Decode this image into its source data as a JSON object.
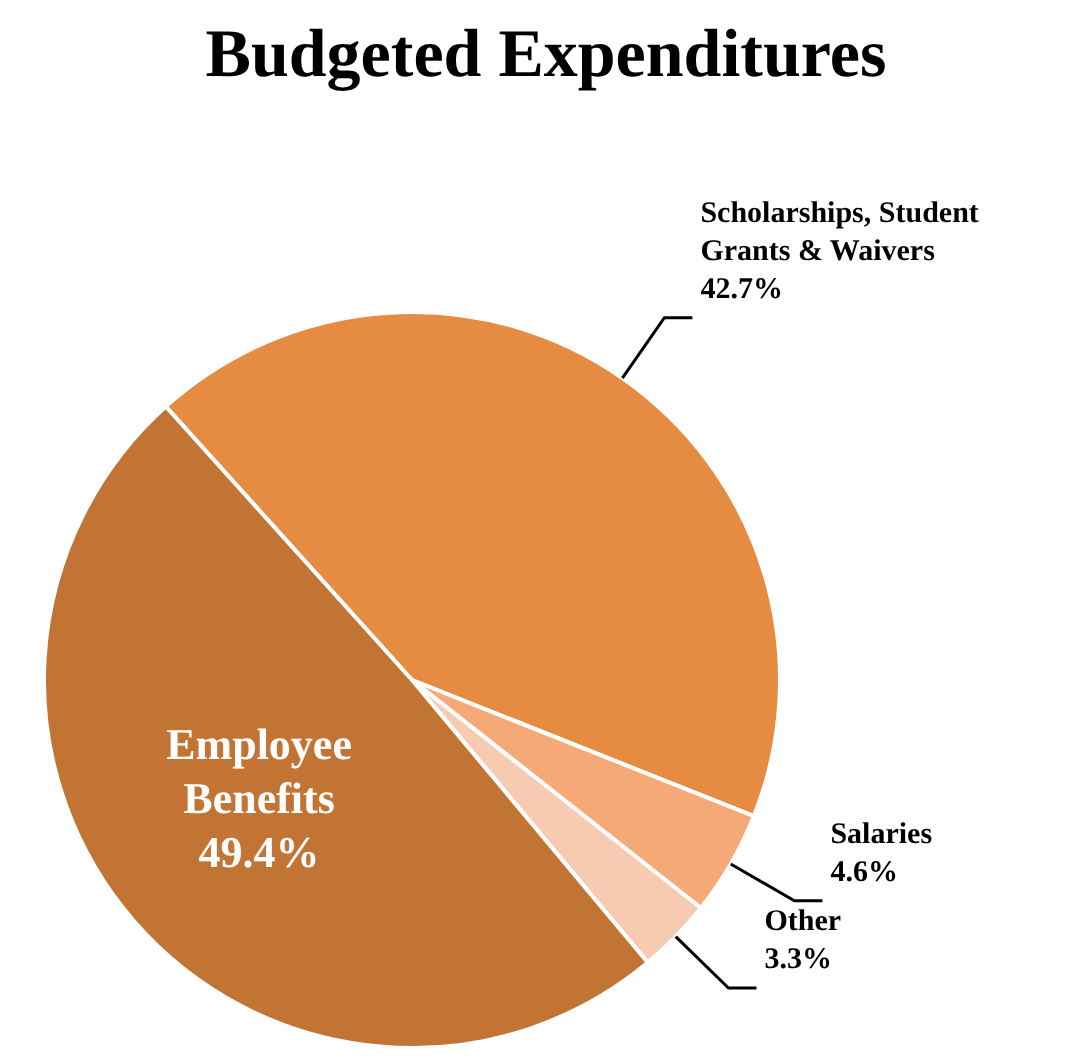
{
  "chart_data": {
    "type": "pie",
    "title": "Budgeted Expenditures",
    "categories": [
      "Scholarships, Student Grants & Waivers",
      "Salaries",
      "Other",
      "Employee Benefits"
    ],
    "values": [
      42.7,
      4.6,
      3.3,
      49.4
    ],
    "colors": [
      "#e68b42",
      "#f5a977",
      "#f7cbb1",
      "#c27435"
    ],
    "value_labels": [
      "42.7%",
      "4.6%",
      "3.3%",
      "49.4%"
    ],
    "legend": false
  }
}
